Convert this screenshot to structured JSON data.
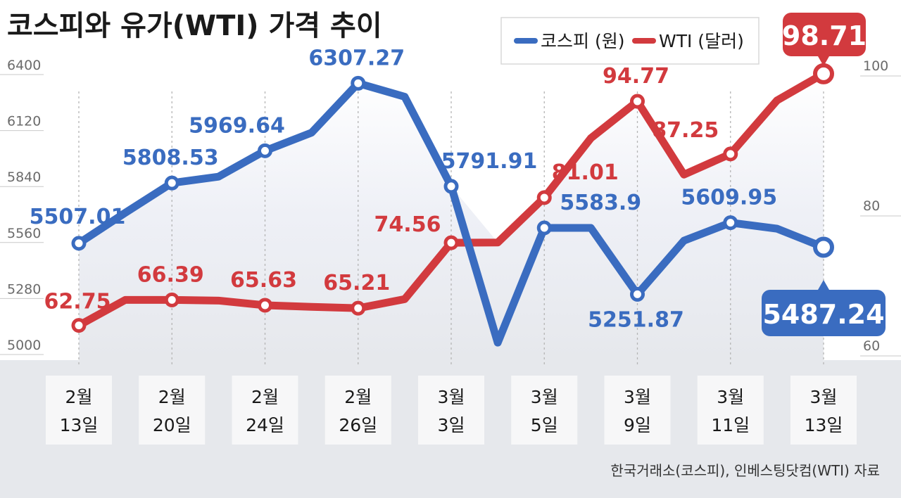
{
  "title": "코스피와 유가(WTI) 가격 추이",
  "source": "한국거래소(코스피), 인베스팅닷컴(WTI) 자료",
  "colors": {
    "kospi": "#3a6cc0",
    "wti": "#d23a3e",
    "bottom_band": "#e6e8ec",
    "xlabel_box": "#f7f7f8"
  },
  "chart_data": {
    "type": "line",
    "x_labels": [
      [
        "2월",
        "13일"
      ],
      [
        "2월",
        "20일"
      ],
      [
        "2월",
        "24일"
      ],
      [
        "2월",
        "26일"
      ],
      [
        "3월",
        "3일"
      ],
      [
        "3월",
        "5일"
      ],
      [
        "3월",
        "9일"
      ],
      [
        "3월",
        "11일"
      ],
      [
        "3월",
        "13일"
      ]
    ],
    "legend": {
      "position": "top-right",
      "items": [
        "코스피 (원)",
        "WTI (달러)"
      ]
    },
    "y_left": {
      "ticks": [
        "6400",
        "6120",
        "5840",
        "5560",
        "5280",
        "5000"
      ],
      "range": [
        5000,
        6400
      ]
    },
    "y_right": {
      "ticks": [
        "100",
        "80",
        "60"
      ],
      "range": [
        60,
        100
      ]
    },
    "series": [
      {
        "name": "코스피 (원)",
        "axis": "left",
        "x": [
          0,
          0.5,
          1,
          1.5,
          2,
          2.5,
          3,
          3.5,
          4,
          4.5,
          5,
          5.5,
          6,
          6.5,
          7,
          7.5,
          8
        ],
        "values": [
          5507.01,
          5660,
          5808.53,
          5840,
          5969.64,
          6060,
          6307.27,
          6240,
          5791.91,
          5010,
          5583.9,
          5583.9,
          5251.87,
          5520,
          5609.95,
          5580,
          5487.24
        ],
        "labels": [
          "5507.01",
          "",
          "5808.53",
          "",
          "5969.64",
          "",
          "6307.27",
          "",
          "5791.91",
          "",
          "5583.9",
          "",
          "5251.87",
          "",
          "5609.95",
          "",
          "5487.24"
        ]
      },
      {
        "name": "WTI (달러)",
        "axis": "right",
        "x": [
          0,
          0.5,
          1,
          1.5,
          2,
          2.5,
          3,
          3.5,
          4,
          4.5,
          5,
          5.5,
          6,
          6.5,
          7,
          7.5,
          8
        ],
        "values": [
          62.75,
          66.4,
          66.39,
          66.3,
          65.63,
          65.4,
          65.21,
          66.5,
          74.56,
          74.6,
          81.01,
          89.5,
          94.77,
          84.3,
          87.25,
          94.9,
          98.71
        ],
        "labels": [
          "62.75",
          "",
          "66.39",
          "",
          "65.63",
          "",
          "65.21",
          "",
          "74.56",
          "",
          "81.01",
          "",
          "94.77",
          "",
          "87.25",
          "",
          "98.71"
        ]
      }
    ]
  }
}
